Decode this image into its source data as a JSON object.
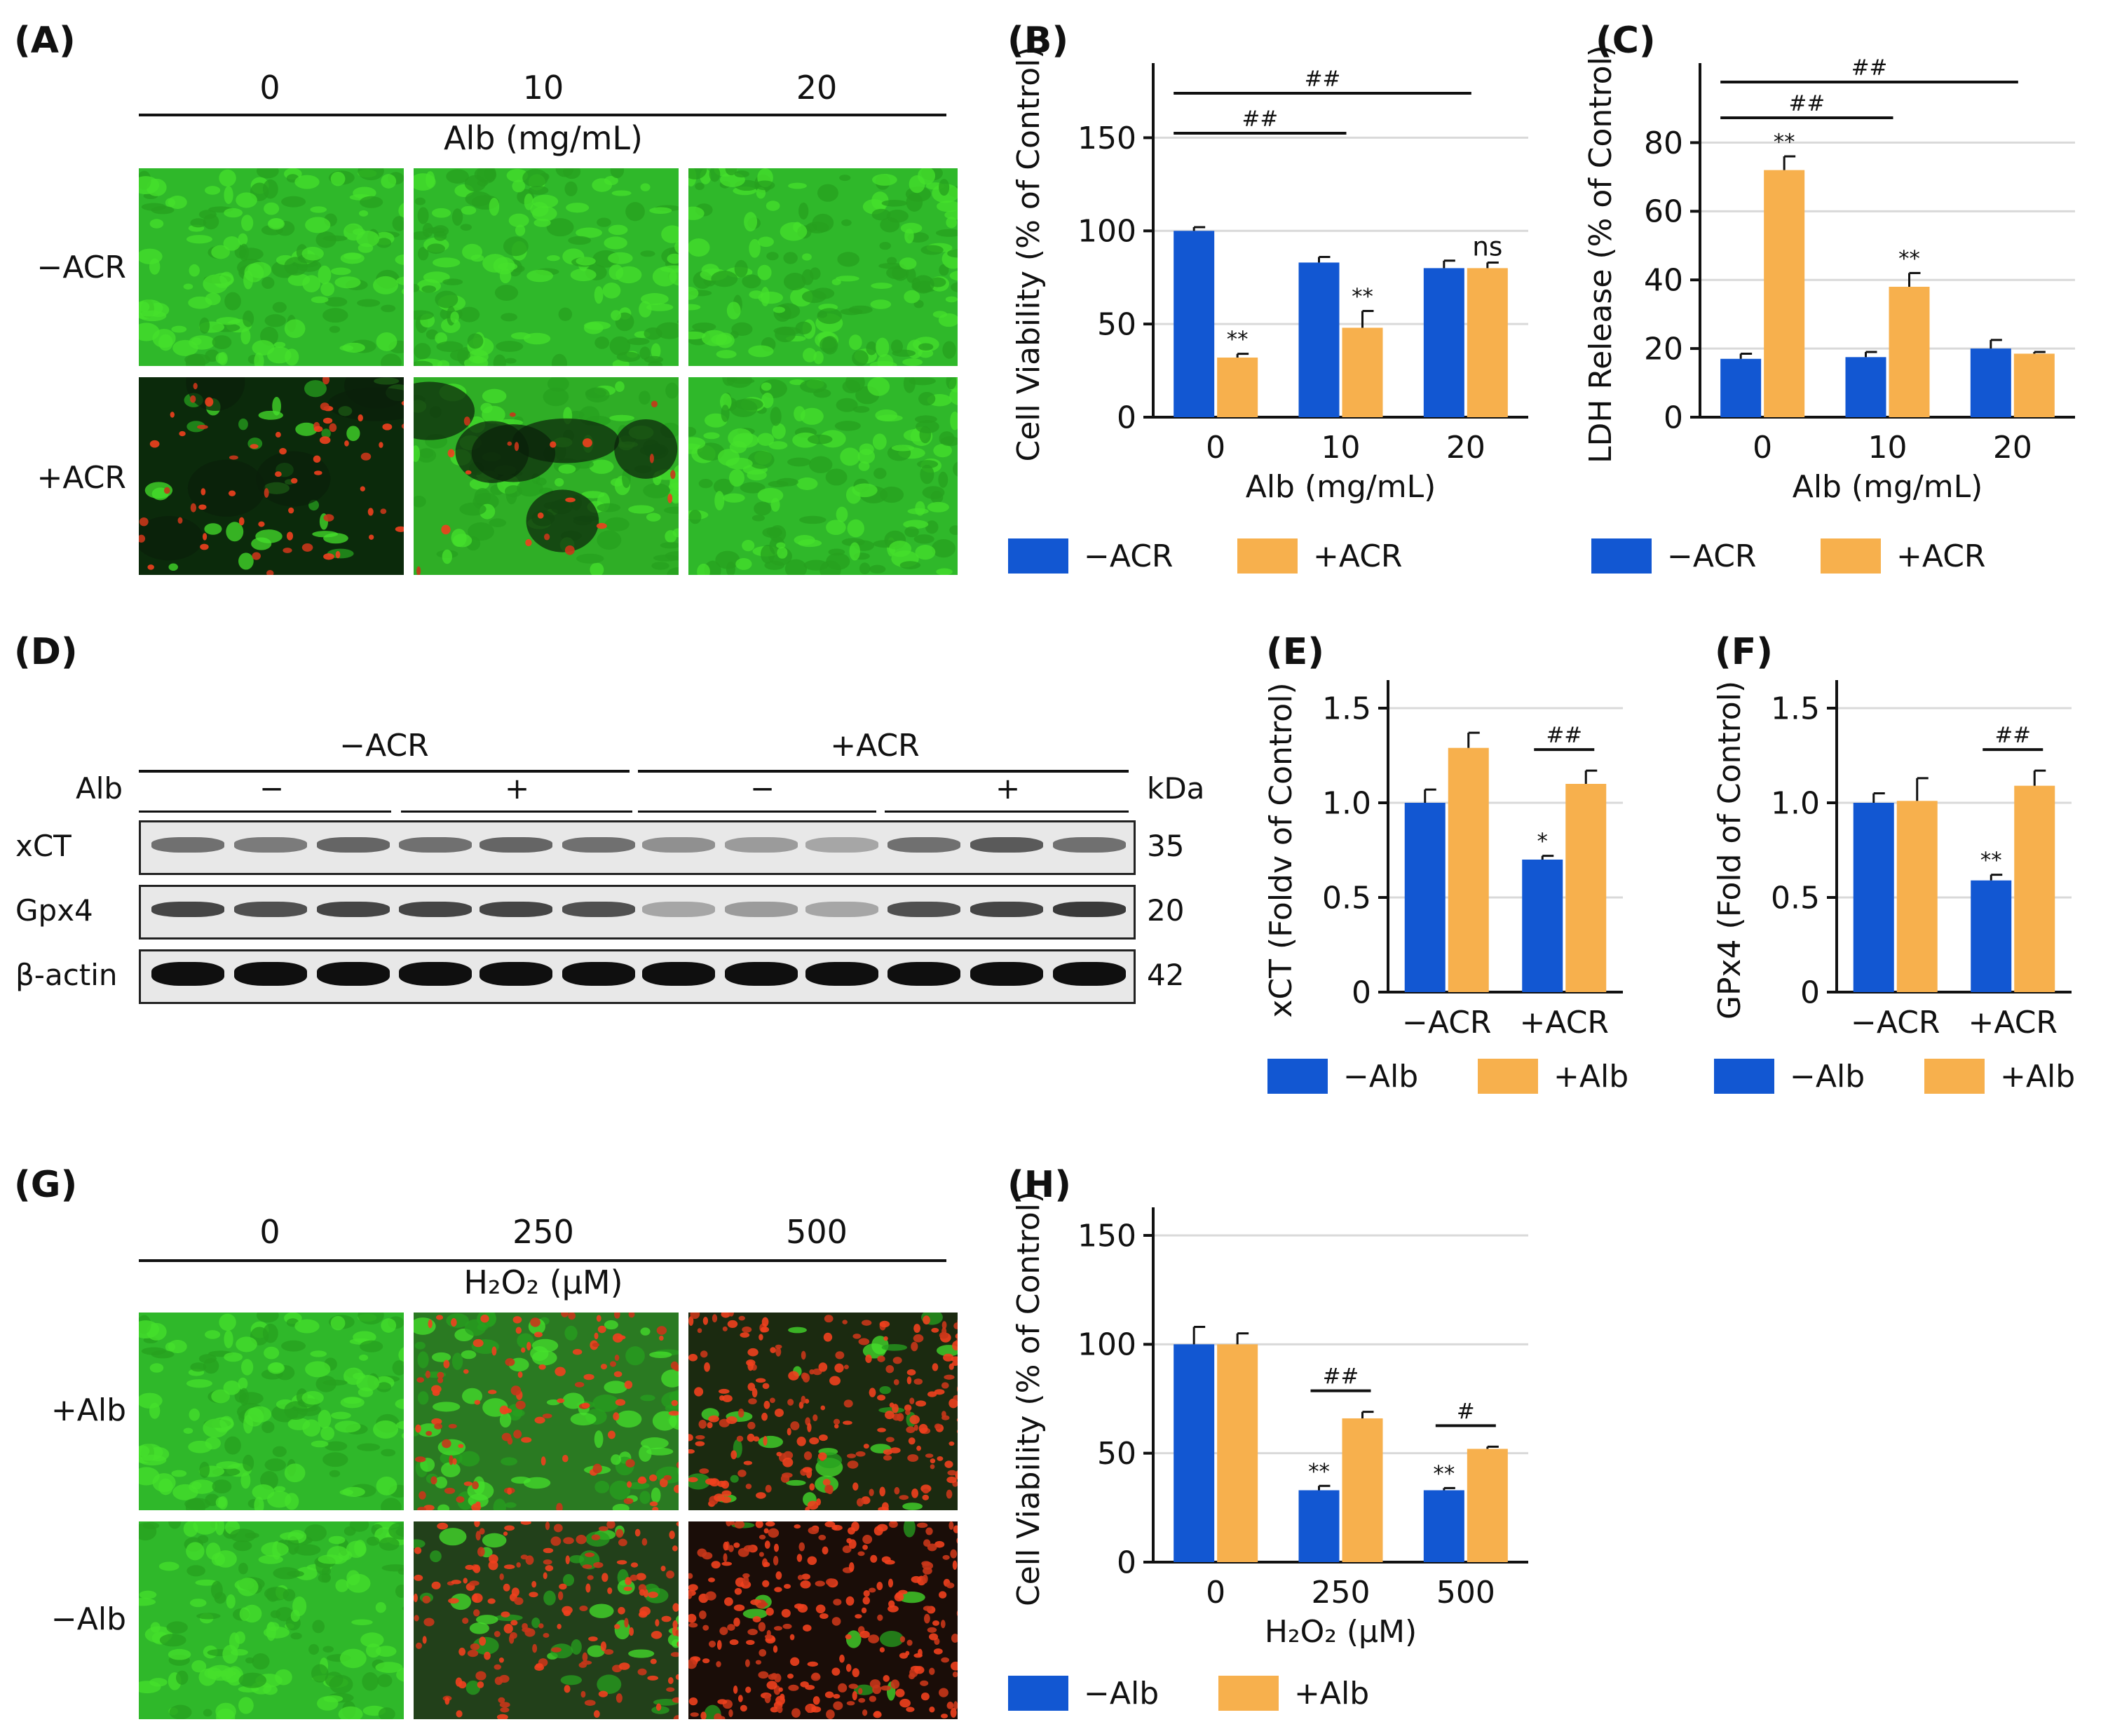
{
  "colors": {
    "blue": "#1257d2",
    "orange": "#f7b04d",
    "green": "#33cc22",
    "red": "#e43b1a",
    "dark": "#0e3a0e"
  },
  "panel_a": {
    "label": "(A)",
    "columns": [
      "0",
      "10",
      "20"
    ],
    "axis_title": "Alb (mg/mL)",
    "rows": [
      "−ACR",
      "+ACR"
    ],
    "cells": [
      {
        "row": 0,
        "col": 0,
        "style": "green"
      },
      {
        "row": 0,
        "col": 1,
        "style": "green"
      },
      {
        "row": 0,
        "col": 2,
        "style": "green"
      },
      {
        "row": 1,
        "col": 0,
        "style": "sparse"
      },
      {
        "row": 1,
        "col": 1,
        "style": "patchy"
      },
      {
        "row": 1,
        "col": 2,
        "style": "green"
      }
    ]
  },
  "panel_g": {
    "label": "(G)",
    "columns": [
      "0",
      "250",
      "500"
    ],
    "axis_title": "H₂O₂ (μM)",
    "rows": [
      "+Alb",
      "−Alb"
    ],
    "cells": [
      {
        "row": 0,
        "col": 0,
        "style": "green"
      },
      {
        "row": 0,
        "col": 1,
        "style": "mixed"
      },
      {
        "row": 0,
        "col": 2,
        "style": "reddark"
      },
      {
        "row": 1,
        "col": 0,
        "style": "green"
      },
      {
        "row": 1,
        "col": 1,
        "style": "redmix"
      },
      {
        "row": 1,
        "col": 2,
        "style": "red"
      }
    ]
  },
  "panel_d": {
    "label": "(D)",
    "groups": [
      "−ACR",
      "+ACR"
    ],
    "alb_label": "Alb",
    "alb_signs": [
      "−",
      "+",
      "−",
      "+"
    ],
    "unit": "kDa",
    "rows": [
      {
        "name": "xCT",
        "kda": "35",
        "intensity": [
          0.55,
          0.5,
          0.6,
          0.55,
          0.6,
          0.55,
          0.4,
          0.35,
          0.3,
          0.55,
          0.65,
          0.55
        ]
      },
      {
        "name": "Gpx4",
        "kda": "20",
        "intensity": [
          0.75,
          0.7,
          0.75,
          0.75,
          0.75,
          0.7,
          0.3,
          0.35,
          0.3,
          0.7,
          0.75,
          0.8
        ]
      },
      {
        "name": "β-actin",
        "kda": "42",
        "intensity": [
          1,
          1,
          1,
          1,
          1,
          1,
          1,
          1,
          1,
          1,
          1,
          1
        ]
      }
    ]
  },
  "chart_data": [
    {
      "panel": "(B)",
      "type": "bar",
      "categories": [
        "0",
        "10",
        "20"
      ],
      "series": [
        {
          "name": "−ACR",
          "values": [
            100,
            83,
            80
          ],
          "errors": [
            2,
            3,
            4
          ]
        },
        {
          "name": "+ACR",
          "values": [
            32,
            48,
            80
          ],
          "errors": [
            2,
            9,
            3
          ]
        }
      ],
      "star_labels": [
        [
          "",
          "**"
        ],
        [
          "",
          "**"
        ],
        [
          "",
          "ns"
        ]
      ],
      "brackets": [
        {
          "from": 0,
          "to": 1,
          "level": 0,
          "label": "##"
        },
        {
          "from": 0,
          "to": 2,
          "level": 1,
          "label": "##"
        }
      ],
      "xlabel": "Alb (mg/mL)",
      "ylabel": "Cell Viability (% of Control)",
      "ylim": [
        0,
        175
      ],
      "yticks": [
        0,
        50,
        100,
        150
      ],
      "grid": true,
      "legend": "bottom"
    },
    {
      "panel": "(C)",
      "type": "bar",
      "categories": [
        "0",
        "10",
        "20"
      ],
      "series": [
        {
          "name": "−ACR",
          "values": [
            17,
            17.5,
            20
          ],
          "errors": [
            1.5,
            1.5,
            2.5
          ]
        },
        {
          "name": "+ACR",
          "values": [
            72,
            38,
            18.5
          ],
          "errors": [
            4,
            4,
            0.5
          ]
        }
      ],
      "star_labels": [
        [
          "",
          "**"
        ],
        [
          "",
          "**"
        ],
        [
          "",
          ""
        ]
      ],
      "brackets": [
        {
          "from": 0,
          "to": 1,
          "level": 0,
          "label": "##"
        },
        {
          "from": 0,
          "to": 2,
          "level": 1,
          "label": "##"
        }
      ],
      "xlabel": "Alb (mg/mL)",
      "ylabel": "LDH Release (% of Control)",
      "ylim": [
        0,
        95
      ],
      "yticks": [
        0,
        20,
        40,
        60,
        80
      ],
      "grid": true,
      "legend": "bottom"
    },
    {
      "panel": "(E)",
      "type": "bar",
      "categories": [
        "−ACR",
        "+ACR"
      ],
      "series": [
        {
          "name": "−Alb",
          "values": [
            1.0,
            0.7
          ],
          "errors": [
            0.07,
            0.02
          ]
        },
        {
          "name": "+Alb",
          "values": [
            1.29,
            1.1
          ],
          "errors": [
            0.08,
            0.07
          ]
        }
      ],
      "star_labels": [
        [
          "",
          ""
        ],
        [
          "*",
          ""
        ]
      ],
      "brackets": [
        {
          "group": 1,
          "label": "##"
        }
      ],
      "xlabel": "",
      "ylabel": "xCT (Foldv of Control)",
      "ylim": [
        0,
        1.5
      ],
      "yticks": [
        "0",
        "0.5",
        "1.0",
        "1.5"
      ],
      "grid": true,
      "legend": "bottom"
    },
    {
      "panel": "(F)",
      "type": "bar",
      "categories": [
        "−ACR",
        "+ACR"
      ],
      "series": [
        {
          "name": "−Alb",
          "values": [
            1.0,
            0.59
          ],
          "errors": [
            0.05,
            0.03
          ]
        },
        {
          "name": "+Alb",
          "values": [
            1.01,
            1.09
          ],
          "errors": [
            0.12,
            0.08
          ]
        }
      ],
      "star_labels": [
        [
          "",
          ""
        ],
        [
          "**",
          ""
        ]
      ],
      "brackets": [
        {
          "group": 1,
          "label": "##"
        }
      ],
      "xlabel": "",
      "ylabel": "GPx4 (Fold of Control)",
      "ylim": [
        0,
        1.5
      ],
      "yticks": [
        "0",
        "0.5",
        "1.0",
        "1.5"
      ],
      "grid": true,
      "legend": "bottom"
    },
    {
      "panel": "(H)",
      "type": "bar",
      "categories": [
        "0",
        "250",
        "500"
      ],
      "series": [
        {
          "name": "−Alb",
          "values": [
            100,
            33,
            33
          ],
          "errors": [
            8,
            2,
            1
          ]
        },
        {
          "name": "+Alb",
          "values": [
            100,
            66,
            52
          ],
          "errors": [
            5,
            3,
            1
          ]
        }
      ],
      "star_labels": [
        [
          "",
          ""
        ],
        [
          "**",
          ""
        ],
        [
          "**",
          ""
        ]
      ],
      "brackets": [
        {
          "group": 1,
          "label": "##"
        },
        {
          "group": 2,
          "label": "#"
        }
      ],
      "xlabel": "H₂O₂ (μM)",
      "ylabel": "Cell Viability (% of Control)",
      "ylim": [
        0,
        150
      ],
      "yticks": [
        0,
        50,
        100,
        150
      ],
      "grid": true,
      "legend": "bottom"
    }
  ]
}
